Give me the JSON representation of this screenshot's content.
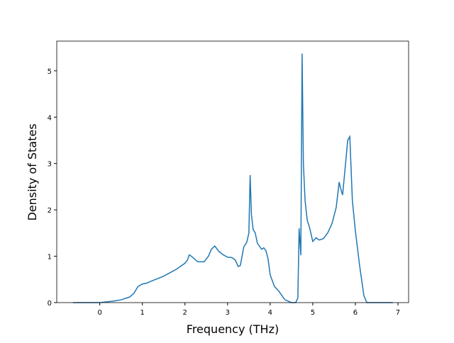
{
  "chart_data": {
    "type": "line",
    "x_label": "Frequency (THz)",
    "y_label": "Density of States",
    "xlim": [
      -1.01,
      7.25
    ],
    "ylim": [
      0,
      5.64
    ],
    "xticks": [
      0,
      1,
      2,
      3,
      4,
      5,
      6,
      7
    ],
    "yticks": [
      0,
      1,
      2,
      3,
      4,
      5
    ],
    "series": [
      {
        "color": "#1f77b4",
        "x": [
          -0.63,
          0,
          0.3,
          0.5,
          0.7,
          0.8,
          0.9,
          1.0,
          1.1,
          1.2,
          1.5,
          1.8,
          2.0,
          2.06,
          2.1,
          2.15,
          2.3,
          2.45,
          2.55,
          2.62,
          2.7,
          2.8,
          2.9,
          3.0,
          3.1,
          3.18,
          3.25,
          3.3,
          3.38,
          3.45,
          3.5,
          3.53,
          3.56,
          3.6,
          3.65,
          3.7,
          3.8,
          3.85,
          3.9,
          3.95,
          4.0,
          4.1,
          4.2,
          4.3,
          4.35,
          4.5,
          4.6,
          4.65,
          4.68,
          4.72,
          4.75,
          4.78,
          4.82,
          4.87,
          4.93,
          5.0,
          5.08,
          5.15,
          5.25,
          5.35,
          5.45,
          5.55,
          5.62,
          5.65,
          5.7,
          5.75,
          5.82,
          5.87,
          5.93,
          6.0,
          6.1,
          6.2,
          6.27,
          6.5,
          6.88
        ],
        "values": [
          0,
          0,
          0.03,
          0.06,
          0.12,
          0.2,
          0.35,
          0.4,
          0.42,
          0.46,
          0.57,
          0.72,
          0.85,
          0.92,
          1.03,
          1.0,
          0.88,
          0.88,
          1.0,
          1.15,
          1.22,
          1.1,
          1.03,
          0.98,
          0.97,
          0.92,
          0.78,
          0.8,
          1.2,
          1.3,
          1.5,
          2.75,
          1.9,
          1.58,
          1.5,
          1.28,
          1.15,
          1.18,
          1.12,
          0.95,
          0.6,
          0.35,
          0.25,
          0.12,
          0.06,
          0,
          0,
          0.1,
          1.6,
          1.02,
          5.37,
          3.0,
          2.2,
          1.78,
          1.6,
          1.32,
          1.4,
          1.35,
          1.38,
          1.5,
          1.7,
          2.05,
          2.6,
          2.48,
          2.32,
          2.8,
          3.5,
          3.58,
          2.2,
          1.55,
          0.8,
          0.15,
          0,
          0,
          0
        ]
      }
    ]
  }
}
